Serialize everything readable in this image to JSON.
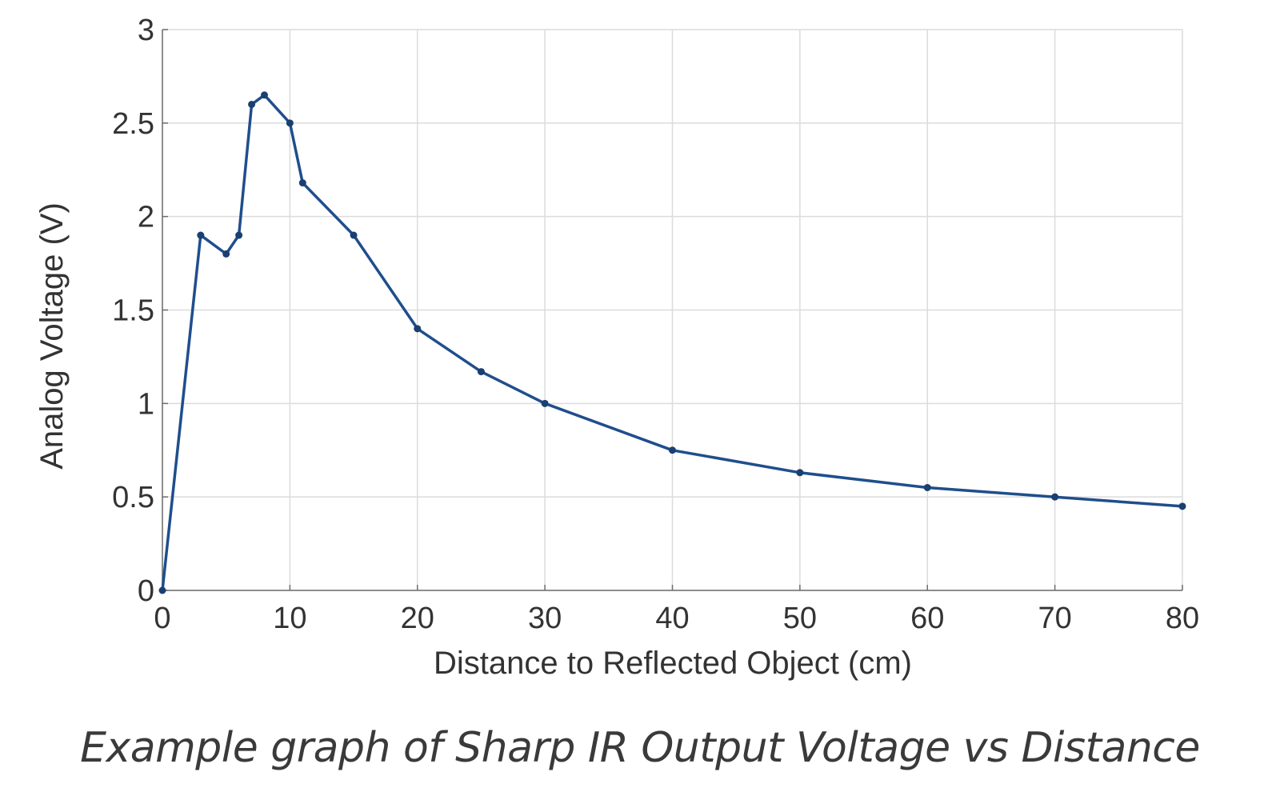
{
  "caption": "Example graph of Sharp IR Output Voltage vs Distance",
  "colors": {
    "line": "#1f4e8c",
    "marker": "#1a3f70",
    "grid": "#dcdcdc",
    "text": "#333333"
  },
  "chart_data": {
    "type": "line",
    "title": "",
    "xlabel": "Distance to Reflected Object (cm)",
    "ylabel": "Analog Voltage (V)",
    "xlim": [
      0,
      80
    ],
    "ylim": [
      0,
      3
    ],
    "xticks": [
      0,
      10,
      20,
      30,
      40,
      50,
      60,
      70,
      80
    ],
    "yticks": [
      0,
      0.5,
      1,
      1.5,
      2,
      2.5,
      3
    ],
    "xtick_labels": [
      "0",
      "10",
      "20",
      "30",
      "40",
      "50",
      "60",
      "70",
      "80"
    ],
    "ytick_labels": [
      "0",
      "0.5",
      "1",
      "1.5",
      "2",
      "2.5",
      "3"
    ],
    "grid": true,
    "legend": "none",
    "series": [
      {
        "x": [
          0,
          3,
          5,
          6,
          7,
          8,
          10,
          11,
          15,
          20,
          25,
          30,
          40,
          50,
          60,
          70,
          80
        ],
        "y": [
          0,
          1.9,
          1.8,
          1.9,
          2.6,
          2.65,
          2.5,
          2.18,
          1.9,
          1.4,
          1.17,
          1.0,
          0.75,
          0.63,
          0.55,
          0.5,
          0.45
        ]
      }
    ]
  }
}
